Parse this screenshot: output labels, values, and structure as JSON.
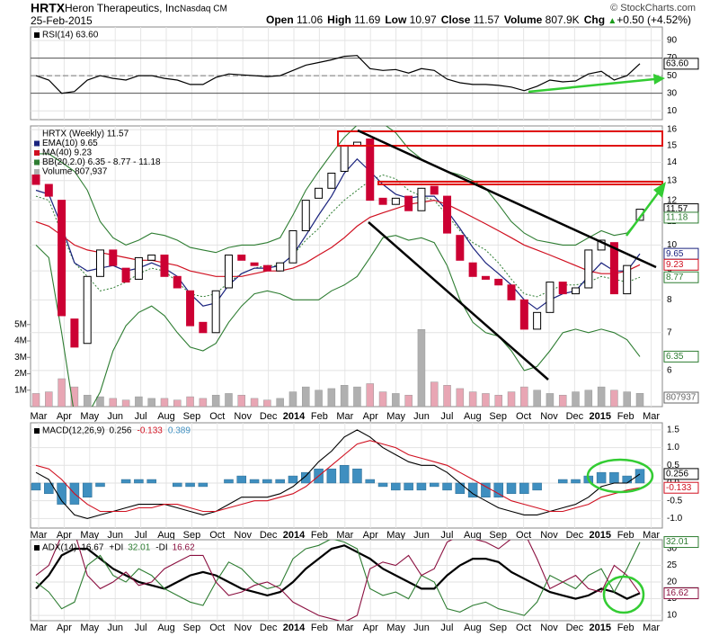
{
  "header": {
    "symbol": "HRTX",
    "company": "Heron Therapeutics, Inc.",
    "exchange": "Nasdaq CM",
    "date": "25-Feb-2015",
    "source": "© StockCharts.com",
    "stats": [
      {
        "label": "Open",
        "value": "11.06"
      },
      {
        "label": "High",
        "value": "11.69"
      },
      {
        "label": "Low",
        "value": "10.97"
      },
      {
        "label": "Close",
        "value": "11.57"
      },
      {
        "label": "Volume",
        "value": "807.9K"
      },
      {
        "label": "Chg",
        "value": "+0.50 (+4.52%)"
      }
    ]
  },
  "x_axis_labels": [
    "Mar",
    "Apr",
    "May",
    "Jun",
    "Jul",
    "Aug",
    "Sep",
    "Oct",
    "Nov",
    "Dec",
    "2014",
    "Feb",
    "Mar",
    "Apr",
    "May",
    "Jun",
    "Jul",
    "Aug",
    "Sep",
    "Oct",
    "Nov",
    "Dec",
    "2015",
    "Feb",
    "Mar"
  ],
  "chart_data": [
    {
      "type": "line",
      "grid": true,
      "ylim": [
        0,
        105.4
      ],
      "yticks": [
        10,
        30,
        50,
        70,
        90
      ],
      "levels": [
        30,
        70
      ],
      "center_level": 50,
      "series": [
        {
          "name": "RSI(14) 63.60",
          "color": "#000000",
          "end_label": "63.60",
          "values": [
            50,
            45,
            30,
            32,
            45,
            50,
            47,
            45,
            50,
            50,
            47,
            45,
            40,
            40,
            48,
            52,
            51,
            50,
            49,
            50,
            56,
            62,
            65,
            68,
            72,
            73,
            58,
            56,
            57,
            53,
            58,
            56,
            46,
            42,
            40,
            40,
            39,
            37,
            33,
            38,
            45,
            43,
            44,
            52,
            55,
            45,
            50,
            63.6
          ]
        }
      ]
    },
    {
      "type": "candlestick",
      "title": "HRTX (Weekly) 11.57",
      "grid": true,
      "log_scale": true,
      "ylim": [
        5.18,
        16.24
      ],
      "yticks": [
        6,
        7,
        8,
        9,
        10,
        11,
        12,
        13,
        14,
        15,
        16
      ],
      "up_color": "#000000",
      "down_color": "#cc0033",
      "open": [
        13.3,
        12.8,
        12.0,
        7.4,
        6.7,
        8.8,
        9.8,
        9.1,
        8.7,
        9.4,
        9.6,
        8.8,
        8.3,
        7.3,
        7.0,
        8.4,
        9.6,
        9.3,
        9.2,
        9.0,
        9.3,
        10.6,
        12.1,
        12.6,
        13.5,
        15.0,
        15.4,
        12.1,
        11.8,
        12.2,
        11.5,
        12.7,
        12.2,
        10.4,
        9.3,
        8.8,
        8.7,
        8.5,
        8.0,
        7.1,
        7.6,
        8.6,
        8.2,
        8.4,
        9.8,
        10.1,
        8.2,
        11.06
      ],
      "close": [
        12.8,
        12.2,
        7.5,
        6.6,
        8.8,
        9.8,
        9.2,
        8.6,
        9.5,
        9.6,
        8.8,
        8.4,
        7.2,
        7.0,
        8.3,
        9.6,
        9.4,
        9.2,
        9.0,
        9.3,
        10.6,
        12.0,
        12.6,
        13.4,
        15.0,
        15.2,
        12.0,
        11.8,
        12.1,
        11.5,
        12.6,
        12.3,
        10.5,
        9.4,
        8.8,
        8.7,
        8.5,
        8.0,
        7.1,
        7.6,
        8.6,
        8.2,
        8.4,
        9.8,
        10.2,
        8.2,
        9.2,
        11.57
      ],
      "series": [
        {
          "name": "EMA(10) 9.65",
          "color": "#1a237e",
          "values": [
            12.5,
            12.3,
            10.8,
            9.3,
            9.0,
            9.1,
            9.2,
            9.0,
            9.1,
            9.3,
            9.1,
            8.8,
            8.2,
            7.8,
            7.9,
            8.5,
            8.9,
            9.1,
            9.1,
            9.2,
            9.6,
            10.4,
            11.3,
            12.2,
            13.4,
            14.2,
            13.5,
            12.8,
            12.3,
            12.1,
            12.2,
            12.2,
            11.5,
            10.7,
            9.9,
            9.3,
            8.9,
            8.5,
            8.0,
            7.7,
            8.0,
            8.2,
            8.3,
            8.8,
            9.3,
            9.0,
            9.0,
            9.65
          ]
        },
        {
          "name": "MA(40) 9.23",
          "color": "#d01020",
          "values": [
            11.0,
            10.8,
            10.4,
            10.0,
            9.8,
            9.7,
            9.6,
            9.5,
            9.4,
            9.4,
            9.3,
            9.2,
            9.0,
            8.9,
            8.8,
            8.8,
            8.8,
            8.9,
            9.0,
            9.0,
            9.1,
            9.3,
            9.6,
            9.9,
            10.3,
            10.8,
            11.2,
            11.4,
            11.6,
            11.8,
            11.9,
            12.0,
            11.8,
            11.5,
            11.2,
            10.9,
            10.6,
            10.3,
            10.0,
            9.8,
            9.6,
            9.4,
            9.2,
            9.0,
            8.9,
            8.9,
            9.0,
            9.23
          ]
        }
      ],
      "bands": {
        "name": "BB(20,2.0) 6.35 - 8.77 - 11.18",
        "color": "#2e7d32",
        "upper": [
          14.5,
          14.5,
          14.0,
          13.5,
          12.5,
          11.0,
          10.3,
          10.0,
          10.2,
          10.5,
          10.4,
          10.2,
          9.9,
          9.8,
          9.7,
          9.9,
          10.0,
          10.0,
          10.1,
          10.3,
          11.3,
          12.5,
          13.5,
          14.5,
          15.5,
          16.3,
          16.5,
          16.4,
          15.8,
          14.8,
          14.2,
          13.8,
          13.5,
          13.3,
          13.0,
          12.6,
          11.8,
          11.0,
          10.5,
          10.2,
          10.1,
          10.0,
          10.0,
          10.3,
          10.6,
          10.4,
          10.5,
          11.18
        ],
        "middle": [
          12.2,
          12.0,
          10.5,
          9.3,
          8.8,
          8.3,
          8.4,
          8.6,
          8.9,
          9.1,
          9.0,
          8.6,
          8.2,
          8.1,
          8.2,
          8.6,
          8.9,
          9.1,
          9.2,
          9.2,
          9.6,
          10.2,
          10.7,
          11.4,
          12.0,
          12.5,
          13.0,
          13.3,
          13.1,
          12.5,
          12.2,
          12.0,
          11.3,
          10.6,
          10.1,
          9.8,
          9.3,
          8.7,
          8.2,
          8.1,
          8.3,
          8.5,
          8.5,
          8.6,
          8.8,
          8.7,
          8.6,
          8.77
        ],
        "lower": [
          10.0,
          9.5,
          7.0,
          5.0,
          5.0,
          5.5,
          6.5,
          7.2,
          7.6,
          7.8,
          7.5,
          7.0,
          6.6,
          6.5,
          6.7,
          7.3,
          7.8,
          8.2,
          8.3,
          8.2,
          8.0,
          8.0,
          8.0,
          8.3,
          8.5,
          8.8,
          9.5,
          10.3,
          10.4,
          10.2,
          10.3,
          10.1,
          9.2,
          8.0,
          7.3,
          7.0,
          6.9,
          6.5,
          6.0,
          6.1,
          6.5,
          7.0,
          7.1,
          7.0,
          7.1,
          7.0,
          6.8,
          6.35
        ]
      },
      "volume": {
        "name": "Volume 807,937",
        "up_color": "#b0b0b0",
        "down_color": "#e8a6b4",
        "ylim": [
          0,
          17100000
        ],
        "yticks": [
          {
            "value": 1000000,
            "label": "1M"
          },
          {
            "value": 2000000,
            "label": "2M"
          },
          {
            "value": 3000000,
            "label": "3M"
          },
          {
            "value": 4000000,
            "label": "4M"
          },
          {
            "value": 5000000,
            "label": "5M"
          }
        ],
        "values": [
          800000,
          900000,
          1700000,
          1200000,
          700000,
          600000,
          500000,
          400000,
          600000,
          500000,
          500000,
          400000,
          600000,
          500000,
          700000,
          800000,
          700000,
          500000,
          400000,
          500000,
          900000,
          1200000,
          1000000,
          1100000,
          1300000,
          1200000,
          1400000,
          900000,
          800000,
          700000,
          4700000,
          1500000,
          1300000,
          1100000,
          900000,
          800000,
          700000,
          900000,
          1200000,
          1000000,
          800000,
          700000,
          900000,
          1000000,
          1200000,
          1000000,
          900000,
          807937
        ]
      }
    },
    {
      "type": "indicator",
      "grid": true,
      "ylim": [
        -1.27,
        1.7
      ],
      "yticks": [
        {
          "value": -1,
          "label": "-1.0"
        },
        -0.5,
        {
          "value": 0,
          "label": "0.0"
        },
        0.5,
        {
          "value": 1,
          "label": "1.0"
        },
        1.5
      ],
      "series": [
        {
          "name": "MACD(12,26,9)",
          "kind": "line",
          "color": "#000000",
          "values": [
            0.3,
            0.1,
            -0.5,
            -0.9,
            -1.0,
            -0.9,
            -0.8,
            -0.7,
            -0.6,
            -0.6,
            -0.6,
            -0.7,
            -0.8,
            -0.9,
            -0.8,
            -0.6,
            -0.4,
            -0.4,
            -0.4,
            -0.3,
            -0.1,
            0.2,
            0.6,
            0.9,
            1.3,
            1.5,
            1.3,
            1.0,
            0.8,
            0.6,
            0.5,
            0.5,
            0.3,
            0.0,
            -0.3,
            -0.5,
            -0.7,
            -0.8,
            -0.9,
            -0.9,
            -0.8,
            -0.7,
            -0.6,
            -0.4,
            -0.1,
            0.0,
            0.0,
            0.256
          ]
        },
        {
          "kind": "line",
          "color": "#d01020",
          "values": [
            0.5,
            0.4,
            0.1,
            -0.3,
            -0.6,
            -0.8,
            -0.8,
            -0.8,
            -0.7,
            -0.7,
            -0.6,
            -0.6,
            -0.7,
            -0.8,
            -0.8,
            -0.7,
            -0.6,
            -0.5,
            -0.5,
            -0.4,
            -0.3,
            -0.1,
            0.2,
            0.5,
            0.8,
            1.1,
            1.2,
            1.1,
            1.0,
            0.8,
            0.7,
            0.6,
            0.5,
            0.3,
            0.1,
            -0.1,
            -0.3,
            -0.5,
            -0.6,
            -0.7,
            -0.8,
            -0.8,
            -0.7,
            -0.6,
            -0.4,
            -0.3,
            -0.2,
            -0.133
          ]
        },
        {
          "kind": "bar",
          "color": "#3f8fc0",
          "values": [
            -0.2,
            -0.3,
            -0.6,
            -0.6,
            -0.4,
            -0.1,
            0,
            0.1,
            0.1,
            0.1,
            0,
            -0.1,
            -0.1,
            -0.1,
            0,
            0.1,
            0.2,
            0.1,
            0.1,
            0.1,
            0.2,
            0.3,
            0.4,
            0.4,
            0.5,
            0.4,
            0.1,
            -0.1,
            -0.2,
            -0.2,
            -0.2,
            -0.1,
            -0.2,
            -0.3,
            -0.4,
            -0.4,
            -0.4,
            -0.3,
            -0.3,
            -0.2,
            0,
            0.1,
            0.1,
            0.2,
            0.3,
            0.3,
            0.2,
            0.389
          ]
        }
      ]
    },
    {
      "type": "indicator",
      "grid": true,
      "ylim": [
        8.4,
        32.7
      ],
      "yticks": [
        10,
        15,
        20,
        25,
        30
      ],
      "series": [
        {
          "name": "ADX(14)",
          "kind": "line",
          "color": "#000000",
          "width": 2.2,
          "values": [
            18,
            22,
            28,
            30,
            30,
            27,
            24,
            22,
            20,
            19,
            18,
            20,
            22,
            23,
            22,
            20,
            18,
            17,
            16,
            17,
            20,
            24,
            27,
            30,
            31,
            29,
            27,
            24,
            22,
            20,
            18,
            18,
            22,
            25,
            27,
            27,
            26,
            23,
            21,
            19,
            17,
            16,
            15,
            16,
            18,
            17,
            15,
            16.67
          ]
        },
        {
          "name": "+DI",
          "kind": "line",
          "color": "#2e7d32",
          "values": [
            20,
            17,
            12,
            14,
            25,
            28,
            22,
            20,
            24,
            22,
            18,
            16,
            14,
            13,
            20,
            26,
            24,
            20,
            18,
            19,
            27,
            30,
            31,
            33,
            32,
            30,
            18,
            16,
            17,
            15,
            22,
            20,
            12,
            11,
            13,
            14,
            12,
            11,
            10,
            14,
            22,
            20,
            18,
            22,
            24,
            17,
            24,
            32.01
          ]
        },
        {
          "name": "-DI",
          "kind": "line",
          "color": "#8b1040",
          "values": [
            22,
            25,
            34,
            35,
            22,
            18,
            20,
            23,
            19,
            20,
            24,
            26,
            28,
            28,
            20,
            16,
            17,
            19,
            20,
            18,
            14,
            12,
            10,
            9,
            8,
            10,
            24,
            26,
            25,
            28,
            22,
            24,
            32,
            34,
            33,
            32,
            30,
            33,
            35,
            27,
            18,
            20,
            22,
            18,
            17,
            25,
            22,
            16.62
          ]
        }
      ]
    }
  ]
}
